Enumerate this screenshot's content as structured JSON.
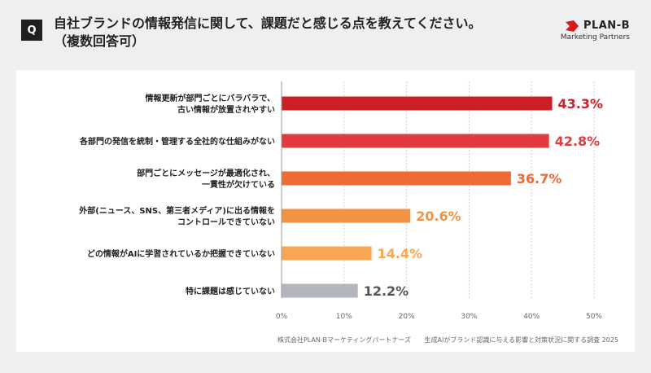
{
  "header": {
    "badge": "Q",
    "title_line1": "自社ブランドの情報発信に関して、課題だと感じる点を教えてください。",
    "title_line2": "（複数回答可）"
  },
  "brand": {
    "name": "PLAN-B",
    "sub": "Marketing Partners",
    "mark_color": "#d71920"
  },
  "source": {
    "company": "株式会社PLAN-Bマーケティングパートナーズ",
    "survey": "生成AIがブランド認識に与える影響と対策状況に関する調査 2025"
  },
  "chart_data": {
    "type": "bar",
    "orientation": "horizontal",
    "categories": [
      [
        "情報更新が部門ごとにバラバラで、",
        "古い情報が放置されやすい"
      ],
      [
        "各部門の発信を統制・管理する全社的な仕組みがない"
      ],
      [
        "部門ごとにメッセージが最適化され、",
        "一貫性が欠けている"
      ],
      [
        "外部(ニュース、SNS、第三者メディア)に出る情報を",
        "コントロールできていない"
      ],
      [
        "どの情報がAIに学習されているか把握できていない"
      ],
      [
        "特に課題は感じていない"
      ]
    ],
    "values": [
      43.3,
      42.8,
      36.7,
      20.6,
      14.4,
      12.2
    ],
    "value_labels": [
      "43.3%",
      "42.8%",
      "36.7%",
      "20.6%",
      "14.4%",
      "12.2%"
    ],
    "colors": [
      "#cc1f27",
      "#e23b3f",
      "#ef6a35",
      "#f39243",
      "#f9a652",
      "#b3b6bd"
    ],
    "label_colors": [
      "#cc1f27",
      "#e23b3f",
      "#ef6a35",
      "#f39243",
      "#f9a652",
      "#555555"
    ],
    "xlim": [
      0,
      50
    ],
    "xticks": [
      0,
      10,
      20,
      30,
      40,
      50
    ],
    "xtick_labels": [
      "0%",
      "10%",
      "20%",
      "30%",
      "40%",
      "50%"
    ],
    "grid": true
  }
}
